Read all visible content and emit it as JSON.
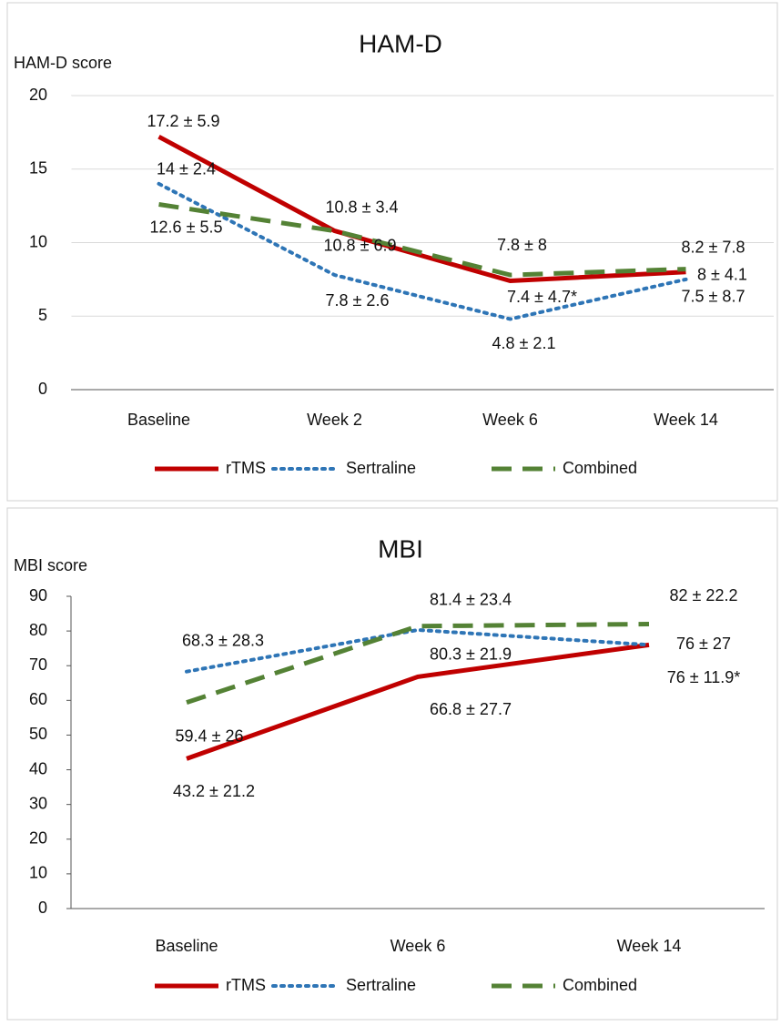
{
  "chart_data": [
    {
      "type": "line",
      "title": "HAM-D",
      "y_label": "HAM-D score",
      "categories": [
        "Baseline",
        "Week 2",
        "Week 6",
        "Week 14"
      ],
      "ylim": [
        0,
        20
      ],
      "yticks": [
        0,
        5,
        10,
        15,
        20
      ],
      "grid": true,
      "series": [
        {
          "name": "rTMS",
          "color": "#c00000",
          "dash": "solid",
          "values": [
            17.2,
            10.8,
            7.4,
            8
          ],
          "value_labels": [
            "17.2 ± 5.9",
            "10.8 ± 3.4",
            "7.4 ± 4.7*",
            "8 ± 4.1"
          ]
        },
        {
          "name": "Sertraline",
          "color": "#2e75b6",
          "dash": "dotted",
          "values": [
            14,
            7.8,
            4.8,
            7.5
          ],
          "value_labels": [
            "14 ± 2.4",
            "7.8 ± 2.6",
            "4.8 ± 2.1",
            "7.5 ± 8.7"
          ]
        },
        {
          "name": "Combined",
          "color": "#548235",
          "dash": "dashed",
          "values": [
            12.6,
            10.8,
            7.8,
            8.2
          ],
          "value_labels": [
            "12.6 ± 5.5",
            "10.8 ± 6.9",
            "7.8 ± 8",
            "8.2 ± 7.8"
          ]
        }
      ]
    },
    {
      "type": "line",
      "title": "MBI",
      "y_label": "MBI score",
      "categories": [
        "Baseline",
        "Week 6",
        "Week 14"
      ],
      "ylim": [
        0,
        90
      ],
      "yticks": [
        0,
        10,
        20,
        30,
        40,
        50,
        60,
        70,
        80,
        90
      ],
      "grid": false,
      "series": [
        {
          "name": "rTMS",
          "color": "#c00000",
          "dash": "solid",
          "values": [
            43.2,
            66.8,
            76
          ],
          "value_labels": [
            "43.2 ± 21.2",
            "66.8 ± 27.7",
            "76 ± 11.9*"
          ]
        },
        {
          "name": "Sertraline",
          "color": "#2e75b6",
          "dash": "dotted",
          "values": [
            68.3,
            80.3,
            76
          ],
          "value_labels": [
            "68.3 ± 28.3",
            "80.3 ± 21.9",
            "76 ± 27"
          ]
        },
        {
          "name": "Combined",
          "color": "#548235",
          "dash": "dashed",
          "values": [
            59.4,
            81.4,
            82
          ],
          "value_labels": [
            "59.4 ± 26",
            "81.4 ± 23.4",
            "82 ± 22.2"
          ]
        }
      ]
    }
  ]
}
